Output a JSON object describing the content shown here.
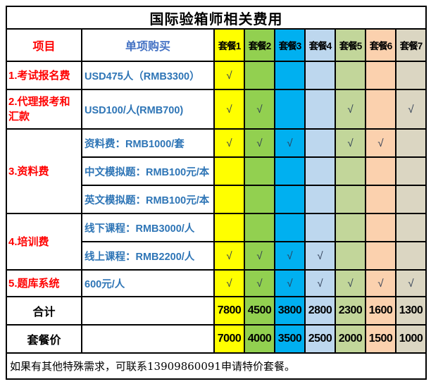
{
  "title": "国际验箱师相关费用",
  "header": {
    "item": "项目",
    "single_purchase": "单项购买",
    "packages": [
      "套餐1",
      "套餐2",
      "套餐3",
      "套餐4",
      "套餐5",
      "套餐6",
      "套餐7"
    ]
  },
  "package_colors": [
    "#FFFF00",
    "#92D050",
    "#00B0F0",
    "#BDD7EE",
    "#C2D69A",
    "#FBD1AE",
    "#DBD6C2"
  ],
  "check_symbol": "√",
  "sections": [
    {
      "label": "1.考试报名费",
      "desc": "USD475人（RMB3300）",
      "checks": [
        1,
        0,
        0,
        0,
        0,
        0,
        0
      ]
    },
    {
      "label": "2.代理报考和汇款",
      "desc": "USD100/人(RMB700)",
      "checks": [
        1,
        1,
        0,
        0,
        1,
        0,
        1
      ]
    },
    {
      "label": "3.资料费",
      "rows": [
        {
          "desc": "资料费：RMB1000/套",
          "checks": [
            1,
            1,
            1,
            0,
            1,
            1,
            0
          ]
        },
        {
          "desc": "中文模拟题：RMB100元/本",
          "checks": [
            0,
            0,
            0,
            0,
            0,
            0,
            0
          ]
        },
        {
          "desc": "英文模拟题：RMB100元/本",
          "checks": [
            0,
            0,
            0,
            0,
            0,
            0,
            0
          ]
        }
      ]
    },
    {
      "label": "4.培训费",
      "rows": [
        {
          "desc": "线下课程：RMB3000/人",
          "checks": [
            0,
            0,
            0,
            0,
            0,
            0,
            0
          ]
        },
        {
          "desc": "线上课程：RMB2200/人",
          "checks": [
            1,
            1,
            1,
            1,
            0,
            0,
            0
          ]
        }
      ]
    },
    {
      "label": "5.题库系统",
      "desc": "600元/人",
      "checks": [
        1,
        1,
        1,
        1,
        1,
        1,
        1
      ]
    }
  ],
  "summary_rows": [
    {
      "label": "合计",
      "values": [
        "7800",
        "4500",
        "3800",
        "2800",
        "2300",
        "1600",
        "1300"
      ]
    },
    {
      "label": "套餐价",
      "values": [
        "7000",
        "4000",
        "3500",
        "2500",
        "2000",
        "1500",
        "1000"
      ]
    }
  ],
  "footer": "如果有其他特殊需求，可联系13909860091申请特价套餐。"
}
